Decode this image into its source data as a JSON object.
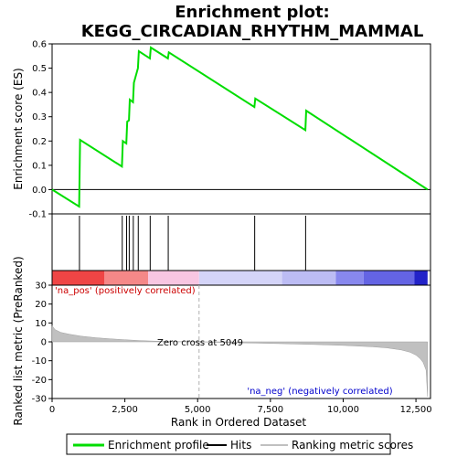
{
  "chart_data": {
    "type": "line",
    "title_line1": "Enrichment plot:",
    "title_line2": "KEGG_CIRCADIAN_RHYTHM_MAMMAL",
    "top_panel": {
      "ylabel": "Enrichment score (ES)",
      "xlim": [
        0,
        13000
      ],
      "ylim": [
        -0.1,
        0.6
      ],
      "yticks": [
        -0.1,
        0.0,
        0.1,
        0.2,
        0.3,
        0.4,
        0.5,
        0.6
      ],
      "ytick_labels": [
        "-0.1",
        "0.0",
        "0.1",
        "0.2",
        "0.3",
        "0.4",
        "0.5",
        "0.6"
      ],
      "series": [
        {
          "name": "Enrichment profile",
          "color": "#00dd00",
          "x": [
            0,
            930,
            960,
            2400,
            2430,
            2550,
            2580,
            2640,
            2670,
            2780,
            2810,
            2950,
            2980,
            3360,
            3390,
            3980,
            4010,
            6950,
            6980,
            8700,
            8730,
            12900
          ],
          "y": [
            0.0,
            -0.07,
            0.205,
            0.095,
            0.2,
            0.19,
            0.28,
            0.285,
            0.37,
            0.36,
            0.44,
            0.5,
            0.57,
            0.54,
            0.585,
            0.54,
            0.565,
            0.34,
            0.375,
            0.245,
            0.325,
            0.0
          ]
        }
      ]
    },
    "hits": {
      "name": "Hits",
      "color": "#000000",
      "x": [
        940,
        2410,
        2560,
        2650,
        2790,
        2960,
        3370,
        3990,
        6960,
        8710
      ]
    },
    "bottom_panel": {
      "ylabel": "Ranked list metric (PreRanked)",
      "xlabel": "Rank in Ordered Dataset",
      "xlim": [
        0,
        13000
      ],
      "ylim": [
        -30,
        30
      ],
      "yticks": [
        -30,
        -20,
        -10,
        0,
        10,
        20,
        30
      ],
      "ytick_labels": [
        "-30",
        "-20",
        "-10",
        "0",
        "10",
        "20",
        "30"
      ],
      "xticks": [
        0,
        2500,
        5000,
        7500,
        10000,
        12500
      ],
      "xtick_labels": [
        "0",
        "2,500",
        "5,000",
        "7,500",
        "10,000",
        "12,500"
      ],
      "series": [
        {
          "name": "Ranking metric scores",
          "color": "#c0c0c0",
          "x": [
            0,
            100,
            300,
            600,
            1000,
            1500,
            2000,
            2500,
            3000,
            3500,
            4000,
            4500,
            5049,
            5500,
            6000,
            7000,
            8000,
            9000,
            10000,
            11000,
            11500,
            12000,
            12300,
            12500,
            12650,
            12750,
            12850,
            12900
          ],
          "y": [
            8.5,
            6.5,
            5.0,
            4.0,
            3.0,
            2.2,
            1.6,
            1.1,
            0.7,
            0.4,
            0.2,
            0.1,
            0.0,
            -0.2,
            -0.4,
            -0.7,
            -1.0,
            -1.4,
            -1.9,
            -2.6,
            -3.2,
            -4.3,
            -5.5,
            -7.0,
            -9.0,
            -11.0,
            -15.0,
            -29.0
          ]
        }
      ],
      "annotations": {
        "pos": "'na_pos' (positively correlated)",
        "zero": "Zero cross at 5049",
        "neg": "'na_neg' (negatively correlated)",
        "zero_cross": 5049
      }
    },
    "colorbar": {
      "segments": [
        {
          "from": 0,
          "to": 1800,
          "color": "#ef4545"
        },
        {
          "from": 1800,
          "to": 3300,
          "color": "#f58888"
        },
        {
          "from": 3300,
          "to": 5049,
          "color": "#f8c6e2"
        },
        {
          "from": 5049,
          "to": 7900,
          "color": "#d4d4f8"
        },
        {
          "from": 7900,
          "to": 9750,
          "color": "#bcbcf4"
        },
        {
          "from": 9750,
          "to": 10700,
          "color": "#8888ee"
        },
        {
          "from": 10700,
          "to": 12450,
          "color": "#6464e4"
        },
        {
          "from": 12450,
          "to": 12900,
          "color": "#2222c8"
        }
      ]
    },
    "legend": [
      {
        "label": "Enrichment profile",
        "color": "#00dd00"
      },
      {
        "label": "Hits",
        "color": "#000000"
      },
      {
        "label": "Ranking metric scores",
        "color": "#c0c0c0"
      }
    ]
  }
}
